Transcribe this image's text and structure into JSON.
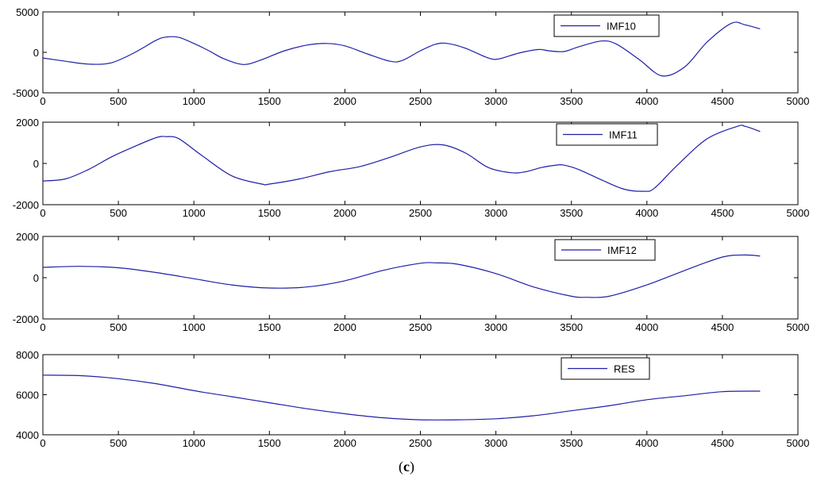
{
  "caption": {
    "open": "(",
    "letter": "c",
    "close": ")"
  },
  "colors": {
    "line": "#1f1fa8",
    "axes": "#000000",
    "background": "#ffffff"
  },
  "chart_data": [
    {
      "type": "line",
      "series": [
        {
          "name": "IMF10",
          "x": [
            0,
            150,
            300,
            450,
            600,
            750,
            820,
            900,
            1000,
            1100,
            1200,
            1330,
            1450,
            1600,
            1750,
            1880,
            2000,
            2150,
            2300,
            2380,
            2500,
            2600,
            2680,
            2800,
            2950,
            3020,
            3150,
            3280,
            3350,
            3450,
            3550,
            3700,
            3800,
            3950,
            4100,
            4250,
            4400,
            4560,
            4650,
            4750
          ],
          "y": [
            -700,
            -1100,
            -1450,
            -1300,
            -100,
            1500,
            1900,
            1850,
            1100,
            200,
            -800,
            -1500,
            -900,
            200,
            900,
            1100,
            800,
            -200,
            -1100,
            -1000,
            200,
            1000,
            1100,
            500,
            -700,
            -800,
            -100,
            350,
            200,
            100,
            700,
            1400,
            1000,
            -900,
            -2900,
            -1800,
            1300,
            3600,
            3400,
            2900
          ]
        }
      ],
      "xlim": [
        0,
        5000
      ],
      "ylim": [
        -5000,
        5000
      ],
      "xticks": [
        0,
        500,
        1000,
        1500,
        2000,
        2500,
        3000,
        3500,
        4000,
        4500,
        5000
      ],
      "yticks": [
        -5000,
        0,
        5000
      ],
      "legend_position": "top-right"
    },
    {
      "type": "line",
      "series": [
        {
          "name": "IMF11",
          "x": [
            0,
            150,
            300,
            450,
            600,
            750,
            820,
            900,
            1050,
            1250,
            1450,
            1500,
            1700,
            1900,
            2100,
            2300,
            2500,
            2650,
            2800,
            2950,
            3100,
            3200,
            3300,
            3400,
            3450,
            3550,
            3700,
            3850,
            3980,
            4050,
            4200,
            4400,
            4600,
            4650,
            4750
          ],
          "y": [
            -850,
            -750,
            -300,
            300,
            800,
            1250,
            1300,
            1200,
            400,
            -600,
            -1000,
            -1000,
            -750,
            -400,
            -150,
            300,
            800,
            900,
            500,
            -200,
            -450,
            -400,
            -200,
            -80,
            -80,
            -300,
            -800,
            -1250,
            -1350,
            -1200,
            -100,
            1200,
            1800,
            1800,
            1550
          ]
        }
      ],
      "xlim": [
        0,
        5000
      ],
      "ylim": [
        -2000,
        2000
      ],
      "xticks": [
        0,
        500,
        1000,
        1500,
        2000,
        2500,
        3000,
        3500,
        4000,
        4500,
        5000
      ],
      "yticks": [
        -2000,
        0,
        2000
      ],
      "legend_position": "top-right"
    },
    {
      "type": "line",
      "series": [
        {
          "name": "IMF12",
          "x": [
            0,
            250,
            500,
            750,
            1000,
            1250,
            1500,
            1750,
            2000,
            2250,
            2500,
            2600,
            2750,
            3000,
            3250,
            3500,
            3600,
            3750,
            4000,
            4250,
            4500,
            4650,
            4750
          ],
          "y": [
            500,
            550,
            480,
            250,
            -50,
            -350,
            -500,
            -450,
            -150,
            350,
            700,
            720,
            650,
            200,
            -450,
            -900,
            -950,
            -900,
            -350,
            350,
            1000,
            1100,
            1050
          ]
        }
      ],
      "xlim": [
        0,
        5000
      ],
      "ylim": [
        -2000,
        2000
      ],
      "xticks": [
        0,
        500,
        1000,
        1500,
        2000,
        2500,
        3000,
        3500,
        4000,
        4500,
        5000
      ],
      "yticks": [
        -2000,
        0,
        2000
      ],
      "legend_position": "top-right"
    },
    {
      "type": "line",
      "series": [
        {
          "name": "RES",
          "x": [
            0,
            250,
            500,
            750,
            1000,
            1250,
            1500,
            1750,
            2000,
            2250,
            2500,
            2750,
            3000,
            3250,
            3500,
            3750,
            4000,
            4250,
            4500,
            4750
          ],
          "y": [
            6980,
            6950,
            6800,
            6550,
            6200,
            5900,
            5600,
            5300,
            5050,
            4850,
            4750,
            4750,
            4800,
            4950,
            5200,
            5450,
            5750,
            5950,
            6150,
            6180
          ]
        }
      ],
      "xlim": [
        0,
        5000
      ],
      "ylim": [
        4000,
        8000
      ],
      "xticks": [
        0,
        500,
        1000,
        1500,
        2000,
        2500,
        3000,
        3500,
        4000,
        4500,
        5000
      ],
      "yticks": [
        4000,
        6000,
        8000
      ],
      "legend_position": "top-right"
    }
  ]
}
